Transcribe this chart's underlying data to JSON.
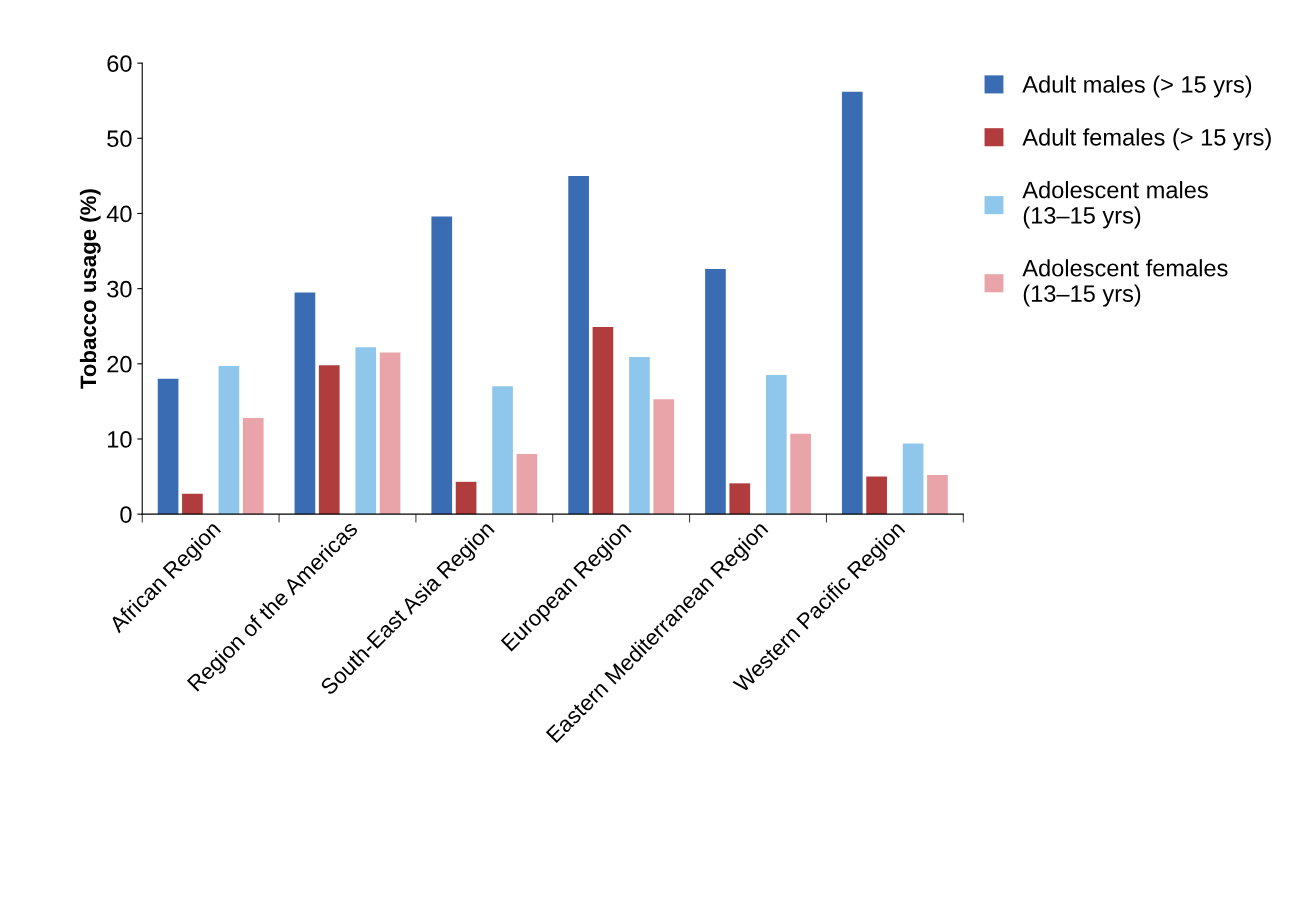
{
  "chart_data": {
    "type": "bar",
    "ylabel": "Tobacco usage (%)",
    "categories": [
      "African Region",
      "Region of the Americas",
      "South-East Asia Region",
      "European Region",
      "Eastern Mediterranean Region",
      "Western Pacific Region"
    ],
    "series": [
      {
        "name": "Adult males (> 15 yrs)",
        "color": "#3a6cb4",
        "values": [
          18.0,
          29.5,
          39.6,
          45.0,
          32.6,
          56.2
        ]
      },
      {
        "name": "Adult females (> 15 yrs)",
        "color": "#b03c3e",
        "values": [
          2.7,
          19.8,
          4.3,
          24.9,
          4.1,
          5.0
        ]
      },
      {
        "name": "Adolescent males\n(13–15 yrs)",
        "color": "#8fc7ec",
        "values": [
          19.7,
          22.2,
          17.0,
          20.9,
          18.5,
          9.4
        ]
      },
      {
        "name": "Adolescent females\n(13–15 yrs)",
        "color": "#e8a4a9",
        "values": [
          12.8,
          21.5,
          8.0,
          15.3,
          10.7,
          5.2
        ]
      }
    ],
    "ylim": [
      0,
      60
    ],
    "yticks": [
      0,
      10,
      20,
      30,
      40,
      50,
      60
    ],
    "grid": false,
    "legend": "right"
  }
}
